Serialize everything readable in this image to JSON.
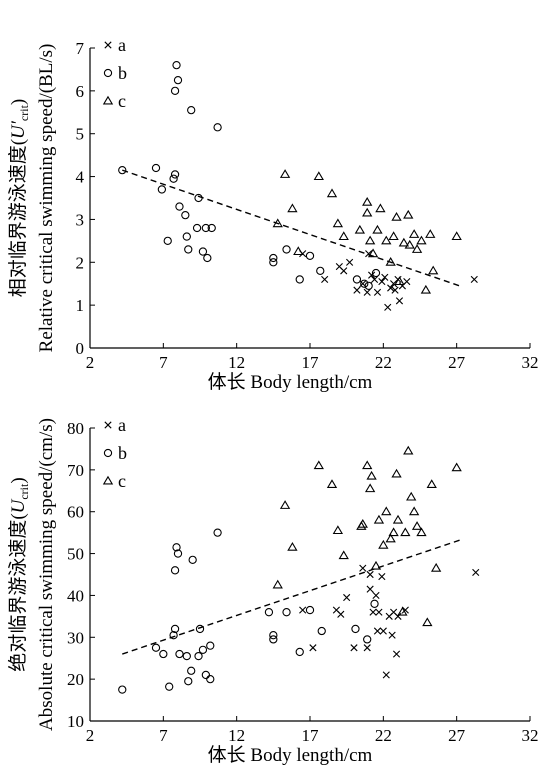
{
  "chart_data": [
    {
      "type": "scatter",
      "xlabel": "体长 Body length/cm",
      "ylabel_line1": "相对临界游泳速度(U′crit)",
      "ylabel_line2": "Relative critical swimming speed/(BL/s)",
      "xlim": [
        2,
        32
      ],
      "ylim": [
        0,
        7
      ],
      "xticks": [
        2,
        7,
        12,
        17,
        22,
        27,
        32
      ],
      "yticks": [
        0,
        1,
        2,
        3,
        4,
        5,
        6,
        7
      ],
      "legend_position": "top-left",
      "series": [
        {
          "name": "a",
          "marker": "cross",
          "points": [
            [
              16.5,
              2.2
            ],
            [
              18,
              1.6
            ],
            [
              19,
              1.9
            ],
            [
              19.3,
              1.8
            ],
            [
              19.7,
              2.0
            ],
            [
              20.2,
              1.35
            ],
            [
              20.6,
              1.5
            ],
            [
              20.9,
              1.3
            ],
            [
              21.0,
              2.2
            ],
            [
              21.2,
              1.7
            ],
            [
              21.4,
              1.6
            ],
            [
              21.6,
              1.3
            ],
            [
              21.9,
              1.55
            ],
            [
              22.1,
              1.65
            ],
            [
              22.3,
              0.95
            ],
            [
              22.5,
              1.4
            ],
            [
              22.7,
              1.5
            ],
            [
              22.8,
              1.35
            ],
            [
              23.0,
              1.6
            ],
            [
              23.1,
              1.1
            ],
            [
              23.3,
              1.45
            ],
            [
              23.6,
              1.55
            ],
            [
              28.2,
              1.6
            ]
          ]
        },
        {
          "name": "b",
          "marker": "circle",
          "points": [
            [
              4.2,
              4.15
            ],
            [
              6.5,
              4.2
            ],
            [
              6.9,
              3.7
            ],
            [
              7.3,
              2.5
            ],
            [
              7.7,
              3.95
            ],
            [
              7.8,
              4.05
            ],
            [
              7.8,
              6.0
            ],
            [
              7.9,
              6.6
            ],
            [
              8.0,
              6.25
            ],
            [
              8.1,
              3.3
            ],
            [
              8.5,
              3.1
            ],
            [
              8.6,
              2.6
            ],
            [
              8.7,
              2.3
            ],
            [
              8.9,
              5.55
            ],
            [
              9.4,
              3.5
            ],
            [
              9.3,
              2.8
            ],
            [
              9.7,
              2.25
            ],
            [
              9.9,
              2.8
            ],
            [
              10.0,
              2.1
            ],
            [
              10.3,
              2.8
            ],
            [
              10.7,
              5.15
            ],
            [
              14.5,
              2.0
            ],
            [
              14.5,
              2.1
            ],
            [
              15.4,
              2.3
            ],
            [
              16.3,
              1.6
            ],
            [
              17.0,
              2.15
            ],
            [
              17.7,
              1.8
            ],
            [
              20.2,
              1.6
            ],
            [
              20.7,
              1.5
            ],
            [
              21.0,
              1.45
            ],
            [
              21.5,
              1.75
            ]
          ]
        },
        {
          "name": "c",
          "marker": "triangle",
          "points": [
            [
              14.8,
              2.9
            ],
            [
              15.3,
              4.05
            ],
            [
              15.8,
              3.25
            ],
            [
              16.2,
              2.25
            ],
            [
              17.6,
              4.0
            ],
            [
              18.5,
              3.6
            ],
            [
              18.9,
              2.9
            ],
            [
              19.3,
              2.6
            ],
            [
              20.4,
              2.75
            ],
            [
              20.9,
              3.4
            ],
            [
              20.9,
              3.15
            ],
            [
              21.1,
              2.5
            ],
            [
              21.3,
              2.2
            ],
            [
              21.6,
              2.75
            ],
            [
              21.8,
              3.25
            ],
            [
              22.2,
              2.5
            ],
            [
              22.5,
              2.0
            ],
            [
              22.7,
              2.6
            ],
            [
              22.9,
              3.05
            ],
            [
              23.1,
              1.55
            ],
            [
              23.4,
              2.45
            ],
            [
              23.7,
              3.1
            ],
            [
              23.8,
              2.4
            ],
            [
              24.1,
              2.65
            ],
            [
              24.3,
              2.3
            ],
            [
              24.6,
              2.5
            ],
            [
              24.9,
              1.35
            ],
            [
              25.2,
              2.65
            ],
            [
              25.4,
              1.8
            ],
            [
              27.0,
              2.6
            ]
          ]
        }
      ],
      "fit_line": {
        "x": [
          4.2,
          27.2
        ],
        "y": [
          4.15,
          1.45
        ]
      }
    },
    {
      "type": "scatter",
      "xlabel": "体长 Body length/cm",
      "ylabel_line1": "绝对临界游泳速度(Ucrit)",
      "ylabel_line2": "Absolute critical swimming speed/(cm/s)",
      "xlim": [
        2,
        32
      ],
      "ylim": [
        10,
        80
      ],
      "xticks": [
        2,
        7,
        12,
        17,
        22,
        27,
        32
      ],
      "yticks": [
        10,
        20,
        30,
        40,
        50,
        60,
        70,
        80
      ],
      "legend_position": "top-left",
      "series": [
        {
          "name": "a",
          "marker": "cross",
          "points": [
            [
              16.5,
              36.5
            ],
            [
              17.2,
              27.5
            ],
            [
              18.8,
              36.5
            ],
            [
              19.1,
              35.5
            ],
            [
              19.5,
              39.5
            ],
            [
              20.0,
              27.5
            ],
            [
              20.6,
              46.5
            ],
            [
              20.9,
              27.5
            ],
            [
              21.1,
              41.5
            ],
            [
              21.1,
              45
            ],
            [
              21.3,
              36
            ],
            [
              21.5,
              40
            ],
            [
              21.6,
              31.5
            ],
            [
              21.7,
              36
            ],
            [
              21.9,
              44.5
            ],
            [
              22.0,
              31.5
            ],
            [
              22.2,
              21
            ],
            [
              22.4,
              35
            ],
            [
              22.6,
              30.5
            ],
            [
              22.7,
              36
            ],
            [
              22.9,
              26
            ],
            [
              23.0,
              35
            ],
            [
              23.5,
              36.5
            ],
            [
              28.3,
              45.5
            ]
          ]
        },
        {
          "name": "b",
          "marker": "circle",
          "points": [
            [
              4.2,
              17.5
            ],
            [
              6.5,
              27.5
            ],
            [
              7.0,
              26
            ],
            [
              7.4,
              18.2
            ],
            [
              7.7,
              30.5
            ],
            [
              7.8,
              32
            ],
            [
              7.8,
              46
            ],
            [
              7.9,
              51.5
            ],
            [
              8.0,
              50
            ],
            [
              8.1,
              26
            ],
            [
              8.6,
              25.5
            ],
            [
              8.7,
              19.5
            ],
            [
              8.9,
              22
            ],
            [
              9.0,
              48.5
            ],
            [
              9.4,
              25.5
            ],
            [
              9.5,
              32
            ],
            [
              9.7,
              27
            ],
            [
              9.9,
              21
            ],
            [
              10.2,
              20
            ],
            [
              10.2,
              28
            ],
            [
              10.7,
              55
            ],
            [
              14.5,
              29.5
            ],
            [
              14.5,
              30.5
            ],
            [
              14.2,
              36
            ],
            [
              15.4,
              36
            ],
            [
              16.3,
              26.5
            ],
            [
              17.0,
              36.5
            ],
            [
              17.8,
              31.5
            ],
            [
              20.1,
              32
            ],
            [
              20.9,
              29.5
            ],
            [
              21.4,
              38
            ]
          ]
        },
        {
          "name": "c",
          "marker": "triangle",
          "points": [
            [
              14.8,
              42.5
            ],
            [
              15.3,
              61.5
            ],
            [
              15.8,
              51.5
            ],
            [
              17.6,
              71
            ],
            [
              18.5,
              66.5
            ],
            [
              18.9,
              55.5
            ],
            [
              19.3,
              49.5
            ],
            [
              20.5,
              56.5
            ],
            [
              20.6,
              57
            ],
            [
              20.9,
              71
            ],
            [
              21.1,
              65.5
            ],
            [
              21.2,
              68.5
            ],
            [
              21.5,
              47
            ],
            [
              21.7,
              58
            ],
            [
              22.0,
              52
            ],
            [
              22.2,
              60
            ],
            [
              22.5,
              53.5
            ],
            [
              22.7,
              55
            ],
            [
              22.9,
              69
            ],
            [
              23.0,
              58
            ],
            [
              23.3,
              36
            ],
            [
              23.5,
              55
            ],
            [
              23.7,
              74.5
            ],
            [
              23.9,
              63.5
            ],
            [
              24.1,
              60
            ],
            [
              24.3,
              56.5
            ],
            [
              24.6,
              55
            ],
            [
              25.0,
              33.5
            ],
            [
              25.3,
              66.5
            ],
            [
              25.6,
              46.5
            ],
            [
              27.0,
              70.5
            ]
          ]
        }
      ],
      "fit_line": {
        "x": [
          4.2,
          27.2
        ],
        "y": [
          26,
          53.2
        ]
      }
    }
  ]
}
